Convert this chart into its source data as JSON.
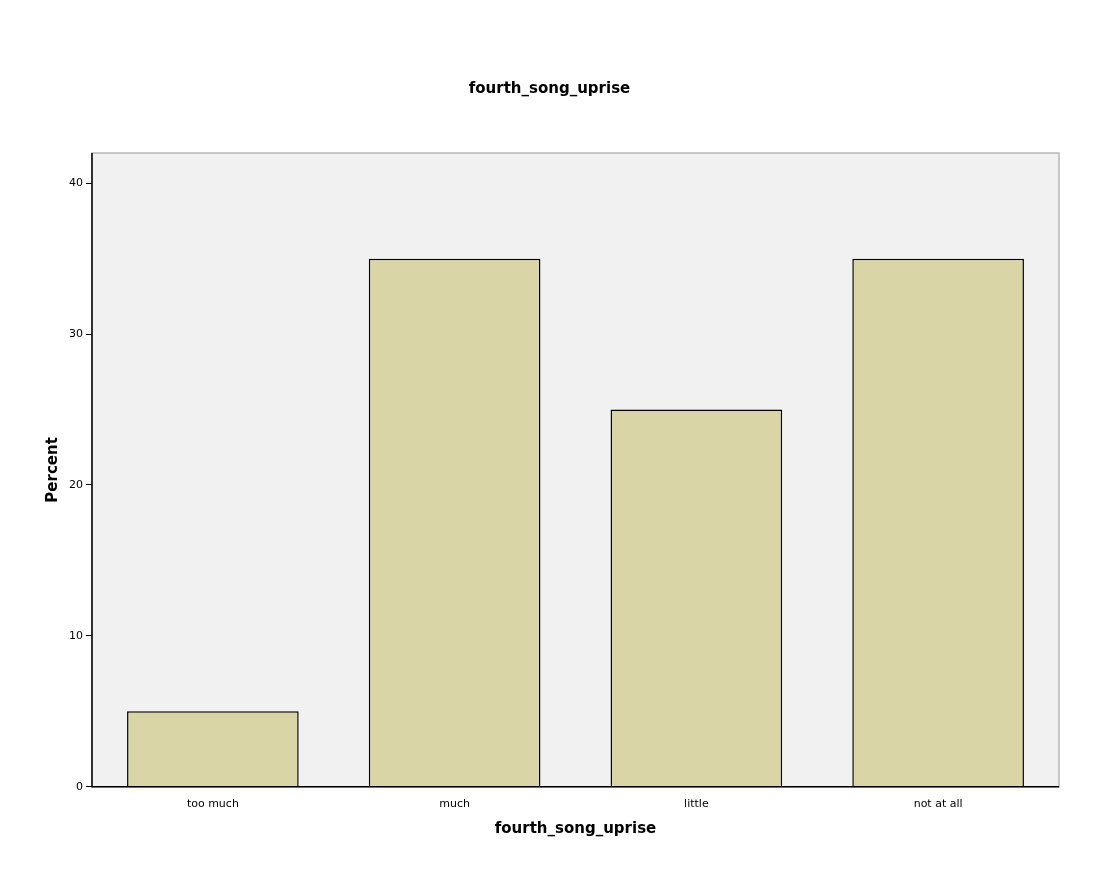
{
  "chart_data": {
    "type": "bar",
    "title": "fourth_song_uprise",
    "xlabel": "fourth_song_uprise",
    "ylabel": "Percent",
    "categories": [
      "too much",
      "much",
      "little",
      "not at all"
    ],
    "values": [
      5,
      35,
      25,
      35
    ],
    "color": "#d9d5a7",
    "ylim": [
      0,
      42
    ],
    "yticks": [
      0,
      10,
      20,
      30,
      40
    ]
  }
}
